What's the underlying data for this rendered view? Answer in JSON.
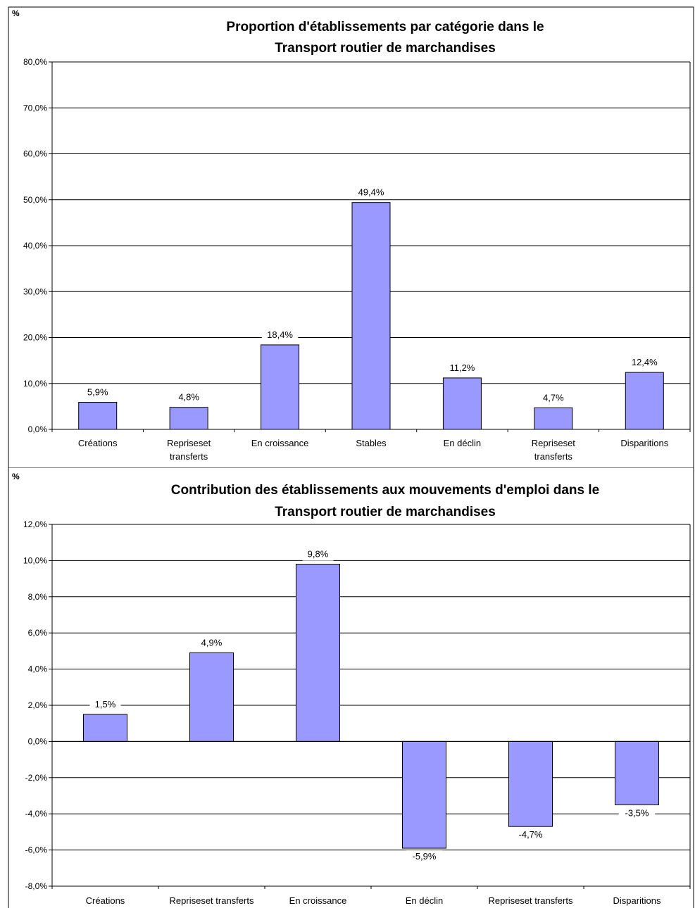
{
  "chart_data": [
    {
      "type": "bar",
      "unit_label": "%",
      "title": [
        "Proportion d'établissements par catégorie dans le",
        "Transport routier de marchandises"
      ],
      "categories": [
        [
          "Créations"
        ],
        [
          "Repriseset",
          "transferts"
        ],
        [
          "En croissance"
        ],
        [
          "Stables"
        ],
        [
          "En déclin"
        ],
        [
          "Repriseset",
          "transferts"
        ],
        [
          "Disparitions"
        ]
      ],
      "values": [
        5.9,
        4.8,
        18.4,
        49.4,
        11.2,
        4.7,
        12.4
      ],
      "value_labels": [
        "5,9%",
        "4,8%",
        "18,4%",
        "49,4%",
        "11,2%",
        "4,7%",
        "12,4%"
      ],
      "ylim": [
        0,
        80
      ],
      "yticks": [
        0,
        10,
        20,
        30,
        40,
        50,
        60,
        70,
        80
      ],
      "ytick_labels": [
        "0,0%",
        "10,0%",
        "20,0%",
        "30,0%",
        "40,0%",
        "50,0%",
        "60,0%",
        "70,0%",
        "80,0%"
      ],
      "grid": true,
      "bar_color": "#9999ff"
    },
    {
      "type": "bar",
      "unit_label": "%",
      "title": [
        "Contribution des établissements aux mouvements d'emploi dans le",
        "Transport routier de marchandises"
      ],
      "categories": [
        [
          "Créations"
        ],
        [
          "Repriseset transferts"
        ],
        [
          "En croissance"
        ],
        [
          "En déclin"
        ],
        [
          "Repriseset transferts"
        ],
        [
          "Disparitions"
        ]
      ],
      "values": [
        1.5,
        4.9,
        9.8,
        -5.9,
        -4.7,
        -3.5
      ],
      "value_labels": [
        "1,5%",
        "4,9%",
        "9,8%",
        "-5,9%",
        "-4,7%",
        "-3,5%"
      ],
      "ylim": [
        -8,
        12
      ],
      "yticks": [
        -8,
        -6,
        -4,
        -2,
        0,
        2,
        4,
        6,
        8,
        10,
        12
      ],
      "ytick_labels": [
        "-8,0%",
        "-6,0%",
        "-4,0%",
        "-2,0%",
        "0,0%",
        "2,0%",
        "4,0%",
        "6,0%",
        "8,0%",
        "10,0%",
        "12,0%"
      ],
      "grid": true,
      "bar_color": "#9999ff"
    }
  ]
}
